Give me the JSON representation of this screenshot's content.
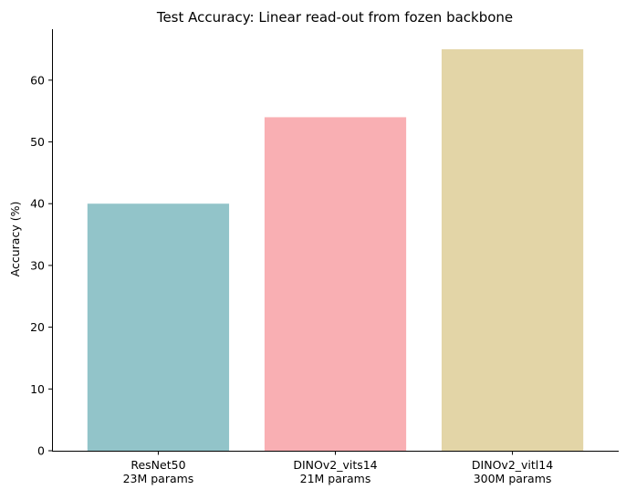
{
  "chart_data": {
    "type": "bar",
    "title": "Test Accuracy: Linear read-out from fozen backbone",
    "xlabel": "",
    "ylabel": "Accuracy (%)",
    "ylim": [
      0,
      68.25
    ],
    "yticks": [
      0,
      10,
      20,
      30,
      40,
      50,
      60
    ],
    "grid": false,
    "categories": [
      {
        "name": "ResNet50",
        "sub": "23M params"
      },
      {
        "name": "DINOv2_vits14",
        "sub": "21M params"
      },
      {
        "name": "DINOv2_vitl14",
        "sub": "300M params"
      }
    ],
    "values": [
      40,
      54,
      65
    ],
    "colors": [
      "#92c4c9",
      "#f9afb3",
      "#e3d5a7"
    ]
  }
}
